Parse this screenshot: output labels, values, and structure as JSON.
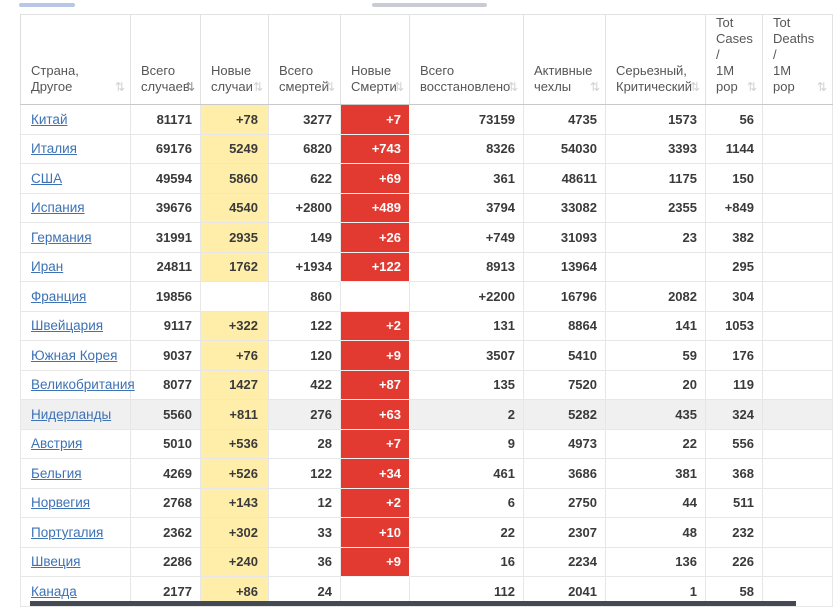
{
  "colors": {
    "new_cases_bg": "#FFEEAA",
    "new_deaths_bg": "#E23A30",
    "new_deaths_text": "#FFFFFF",
    "country_link": "#3D72B5",
    "highlight_row_bg": "#F0F0F0",
    "bottom_bar": "#434A54",
    "top_strip_blue": "#B8C7E8",
    "top_strip_gray": "#C9CCD2"
  },
  "icons": {
    "sort": "⇅",
    "sort_active": "⇅"
  },
  "table": {
    "headers": [
      {
        "id": "country",
        "label": "Страна,\nДругое",
        "sort": "inactive"
      },
      {
        "id": "total-cases",
        "label": "Всего\nслучаев",
        "sort": "active"
      },
      {
        "id": "new-cases",
        "label": "Новые\nслучаи",
        "sort": "inactive"
      },
      {
        "id": "total-deaths",
        "label": "Всего\nсмертей",
        "sort": "inactive"
      },
      {
        "id": "new-deaths",
        "label": "Новые\nСмерти",
        "sort": "inactive"
      },
      {
        "id": "total-recovered",
        "label": "Всего\nвосстановлено",
        "sort": "inactive"
      },
      {
        "id": "active-cases",
        "label": "Активные\nчехлы",
        "sort": "inactive"
      },
      {
        "id": "serious-critical",
        "label": "Серьезный,\nКритический",
        "sort": "inactive"
      },
      {
        "id": "tot-cases-1m",
        "label": "Tot\nCases\n/\n1M\npop",
        "sort": "inactive"
      },
      {
        "id": "tot-deaths-1m",
        "label": "Tot\nDeaths\n/\n1M\npop",
        "sort": "inactive"
      }
    ],
    "rows": [
      {
        "country": "Китай",
        "total_cases": "81171",
        "new_cases": "+78",
        "total_deaths": "3277",
        "new_deaths": "+7",
        "total_recovered": "73159",
        "active_cases": "4735",
        "serious_critical": "1573",
        "tot_cases_1m": "56",
        "tot_deaths_1m": ""
      },
      {
        "country": "Италия",
        "total_cases": "69176",
        "new_cases": "5249",
        "total_deaths": "6820",
        "new_deaths": "+743",
        "total_recovered": "8326",
        "active_cases": "54030",
        "serious_critical": "3393",
        "tot_cases_1m": "1144",
        "tot_deaths_1m": ""
      },
      {
        "country": "США",
        "total_cases": "49594",
        "new_cases": "5860",
        "total_deaths": "622",
        "new_deaths": "+69",
        "total_recovered": "361",
        "active_cases": "48611",
        "serious_critical": "1175",
        "tot_cases_1m": "150",
        "tot_deaths_1m": ""
      },
      {
        "country": "Испания",
        "total_cases": "39676",
        "new_cases": "4540",
        "total_deaths": "+2800",
        "new_deaths": "+489",
        "total_recovered": "3794",
        "active_cases": "33082",
        "serious_critical": "2355",
        "tot_cases_1m": "+849",
        "tot_deaths_1m": ""
      },
      {
        "country": "Германия",
        "total_cases": "31991",
        "new_cases": "2935",
        "total_deaths": "149",
        "new_deaths": "+26",
        "total_recovered": "+749",
        "active_cases": "31093",
        "serious_critical": "23",
        "tot_cases_1m": "382",
        "tot_deaths_1m": ""
      },
      {
        "country": "Иран",
        "total_cases": "24811",
        "new_cases": "1762",
        "total_deaths": "+1934",
        "new_deaths": "+122",
        "total_recovered": "8913",
        "active_cases": "13964",
        "serious_critical": "",
        "tot_cases_1m": "295",
        "tot_deaths_1m": ""
      },
      {
        "country": "Франция",
        "total_cases": "19856",
        "new_cases": "",
        "total_deaths": "860",
        "new_deaths": "",
        "total_recovered": "+2200",
        "active_cases": "16796",
        "serious_critical": "2082",
        "tot_cases_1m": "304",
        "tot_deaths_1m": ""
      },
      {
        "country": "Швейцария",
        "total_cases": "9117",
        "new_cases": "+322",
        "total_deaths": "122",
        "new_deaths": "+2",
        "total_recovered": "131",
        "active_cases": "8864",
        "serious_critical": "141",
        "tot_cases_1m": "1053",
        "tot_deaths_1m": ""
      },
      {
        "country": "Южная Корея",
        "total_cases": "9037",
        "new_cases": "+76",
        "total_deaths": "120",
        "new_deaths": "+9",
        "total_recovered": "3507",
        "active_cases": "5410",
        "serious_critical": "59",
        "tot_cases_1m": "176",
        "tot_deaths_1m": ""
      },
      {
        "country": "Великобритания",
        "total_cases": "8077",
        "new_cases": "1427",
        "total_deaths": "422",
        "new_deaths": "+87",
        "total_recovered": "135",
        "active_cases": "7520",
        "serious_critical": "20",
        "tot_cases_1m": "119",
        "tot_deaths_1m": ""
      },
      {
        "country": "Нидерланды",
        "total_cases": "5560",
        "new_cases": "+811",
        "total_deaths": "276",
        "new_deaths": "+63",
        "total_recovered": "2",
        "active_cases": "5282",
        "serious_critical": "435",
        "tot_cases_1m": "324",
        "tot_deaths_1m": "",
        "highlighted": true
      },
      {
        "country": "Австрия",
        "total_cases": "5010",
        "new_cases": "+536",
        "total_deaths": "28",
        "new_deaths": "+7",
        "total_recovered": "9",
        "active_cases": "4973",
        "serious_critical": "22",
        "tot_cases_1m": "556",
        "tot_deaths_1m": ""
      },
      {
        "country": "Бельгия",
        "total_cases": "4269",
        "new_cases": "+526",
        "total_deaths": "122",
        "new_deaths": "+34",
        "total_recovered": "461",
        "active_cases": "3686",
        "serious_critical": "381",
        "tot_cases_1m": "368",
        "tot_deaths_1m": ""
      },
      {
        "country": "Норвегия",
        "total_cases": "2768",
        "new_cases": "+143",
        "total_deaths": "12",
        "new_deaths": "+2",
        "total_recovered": "6",
        "active_cases": "2750",
        "serious_critical": "44",
        "tot_cases_1m": "511",
        "tot_deaths_1m": ""
      },
      {
        "country": "Португалия",
        "total_cases": "2362",
        "new_cases": "+302",
        "total_deaths": "33",
        "new_deaths": "+10",
        "total_recovered": "22",
        "active_cases": "2307",
        "serious_critical": "48",
        "tot_cases_1m": "232",
        "tot_deaths_1m": ""
      },
      {
        "country": "Швеция",
        "total_cases": "2286",
        "new_cases": "+240",
        "total_deaths": "36",
        "new_deaths": "+9",
        "total_recovered": "16",
        "active_cases": "2234",
        "serious_critical": "136",
        "tot_cases_1m": "226",
        "tot_deaths_1m": ""
      },
      {
        "country": "Канада",
        "total_cases": "2177",
        "new_cases": "+86",
        "total_deaths": "24",
        "new_deaths": "",
        "total_recovered": "112",
        "active_cases": "2041",
        "serious_critical": "1",
        "tot_cases_1m": "58",
        "tot_deaths_1m": ""
      }
    ]
  }
}
